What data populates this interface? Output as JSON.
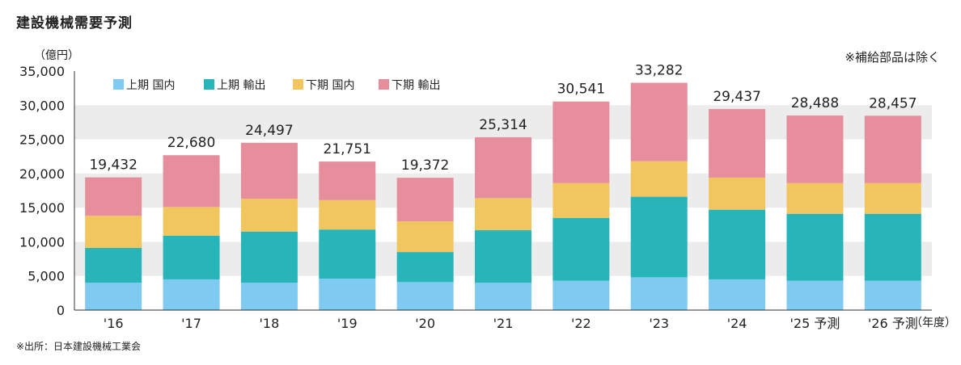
{
  "header": {
    "title": "建設機械需要予測",
    "unit": "（億円）",
    "note": "※補給部品は除く",
    "source": "※出所：日本建設機械工業会"
  },
  "chart_data": {
    "type": "bar",
    "stacked": true,
    "categories": [
      "'16",
      "'17",
      "'18",
      "'19",
      "'20",
      "'21",
      "'22",
      "'23",
      "'24",
      "'25 予測",
      "'26 予測"
    ],
    "x_unit_label": "（年度）",
    "ylim": [
      0,
      35000
    ],
    "yticks": [
      0,
      5000,
      10000,
      15000,
      20000,
      25000,
      30000,
      35000
    ],
    "ytick_labels": [
      "0",
      "5,000",
      "10,000",
      "15,000",
      "20,000",
      "25,000",
      "30,000",
      "35,000"
    ],
    "grid": "alternating horizontal bands",
    "legend_position": "top-left",
    "series": [
      {
        "name": "上期 国内",
        "color": "#7fcaf0",
        "values": [
          4000,
          4500,
          4000,
          4600,
          4100,
          4000,
          4300,
          4800,
          4500,
          4300,
          4300
        ]
      },
      {
        "name": "上期 輸出",
        "color": "#27b5ba",
        "values": [
          5100,
          6400,
          7500,
          7200,
          4400,
          7700,
          9200,
          11800,
          10200,
          9800,
          9800
        ]
      },
      {
        "name": "下期 国内",
        "color": "#f1c65f",
        "values": [
          4700,
          4200,
          4800,
          4300,
          4500,
          4700,
          5100,
          5200,
          4700,
          4500,
          4500
        ]
      },
      {
        "name": "下期 輸出",
        "color": "#e68e9c",
        "values": [
          5632,
          7580,
          8197,
          5651,
          6372,
          8914,
          11941,
          11482,
          10037,
          9888,
          9857
        ]
      }
    ],
    "totals": [
      19432,
      22680,
      24497,
      21751,
      19372,
      25314,
      30541,
      33282,
      29437,
      28488,
      28457
    ],
    "total_labels": [
      "19,432",
      "22,680",
      "24,497",
      "21,751",
      "19,372",
      "25,314",
      "30,541",
      "33,282",
      "29,437",
      "28,488",
      "28,457"
    ]
  }
}
